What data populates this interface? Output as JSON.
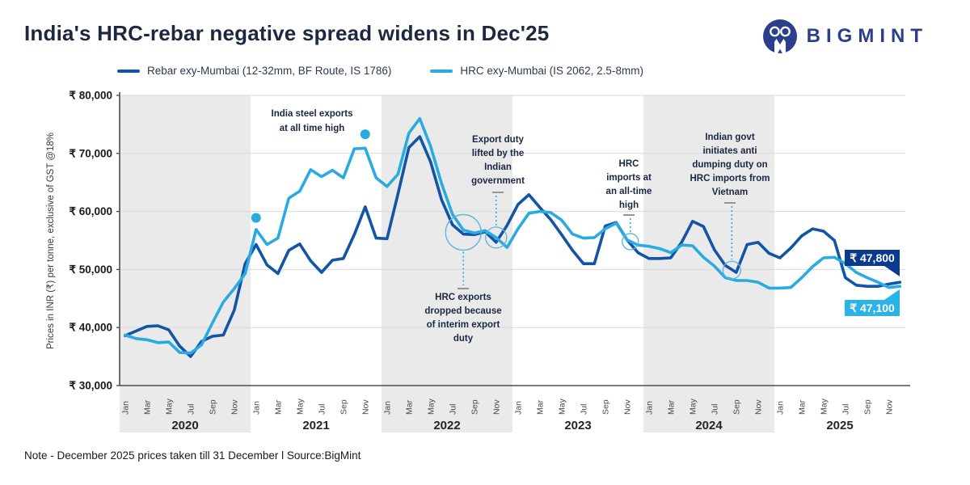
{
  "header": {
    "title": "India's HRC-rebar negative spread widens in Dec'25",
    "brand": "BIGMINT",
    "brand_color": "#2b3f8c"
  },
  "legend": [
    {
      "label": "Rebar exy-Mumbai (12-32mm, BF Route, IS 1786)",
      "color": "#1254a5"
    },
    {
      "label": "HRC exy-Mumbai (IS 2062, 2.5-8mm)",
      "color": "#29abe2"
    }
  ],
  "note": "Note - December 2025 prices taken till  31 December  l  Source:BigMint",
  "chart_data": {
    "type": "line",
    "title": "India's HRC-rebar negative spread widens in Dec'25",
    "ylabel": "Prices in INR (₹) per tonne, exclusive of GST @18%",
    "ylim": [
      30000,
      80000
    ],
    "y_tick_step": 10000,
    "y_tick_prefix": "₹ ",
    "grid": "horizontal",
    "band_years_shaded": [
      2020,
      2022,
      2024
    ],
    "band_color": "#eaeaea",
    "grid_color": "#d9d9d9",
    "axis_color": "#4d4d4d",
    "years": [
      2020,
      2021,
      2022,
      2023,
      2024,
      2025
    ],
    "month_tick_labels": [
      "Jan",
      "Mar",
      "May",
      "Jul",
      "Sep",
      "Nov"
    ],
    "series": [
      {
        "name": "Rebar exy-Mumbai (12-32mm, BF Route, IS 1786)",
        "color": "#1254a5",
        "values": [
          38600,
          39400,
          40200,
          40300,
          39600,
          36800,
          35000,
          37600,
          38500,
          38700,
          43000,
          51000,
          54300,
          50800,
          49300,
          53300,
          54400,
          51500,
          49500,
          51600,
          51900,
          56000,
          60800,
          55400,
          55300,
          63000,
          71000,
          72900,
          68500,
          62000,
          57700,
          56100,
          56000,
          56500,
          54700,
          57600,
          61200,
          62900,
          60700,
          58600,
          56000,
          53300,
          51000,
          51000,
          57500,
          58100,
          55100,
          52900,
          51900,
          51900,
          52000,
          54700,
          58300,
          57400,
          53400,
          50700,
          49500,
          54300,
          54700,
          52800,
          52000,
          53700,
          55800,
          57000,
          56600,
          55000,
          48600,
          47300,
          47100,
          47100,
          47500,
          47800
        ]
      },
      {
        "name": "HRC exy-Mumbai (IS 2062, 2.5-8mm)",
        "color": "#29abe2",
        "values": [
          38700,
          38100,
          37900,
          37400,
          37500,
          35700,
          35600,
          37000,
          40800,
          44400,
          46700,
          49300,
          56900,
          54300,
          55400,
          62300,
          63500,
          67200,
          66000,
          67100,
          65800,
          70800,
          70900,
          65800,
          64300,
          66400,
          73500,
          76000,
          71200,
          64800,
          59500,
          56800,
          56300,
          56700,
          55500,
          53800,
          57000,
          59700,
          60000,
          59800,
          58500,
          56100,
          55400,
          55500,
          57000,
          58000,
          55100,
          54200,
          54000,
          53600,
          52900,
          54200,
          54100,
          52100,
          50600,
          48600,
          48100,
          48100,
          47800,
          46800,
          46800,
          46900,
          48600,
          50500,
          52000,
          52100,
          51000,
          49500,
          48600,
          47800,
          46900,
          47100
        ]
      }
    ],
    "end_labels": [
      {
        "text": "₹ 47,800",
        "series": "Rebar",
        "color": "#0a3a8f"
      },
      {
        "text": "₹ 47,100",
        "series": "HRC",
        "color": "#29b3e8"
      }
    ],
    "annotations": [
      {
        "id": "steel-exports-high",
        "lines": [
          "India steel exports",
          "at all time high"
        ],
        "dots": [
          {
            "month_index": 12,
            "value": 58900
          },
          {
            "month_index": 22,
            "value": 73300
          }
        ]
      },
      {
        "id": "hrc-exports-dropped",
        "lines": [
          "HRC exports",
          "dropped because",
          "of interim export",
          "duty"
        ],
        "circle": {
          "month_index": 31,
          "value": 56400,
          "r": 22
        }
      },
      {
        "id": "export-duty-lifted",
        "lines": [
          "Export duty",
          "lifted by the",
          "Indian",
          "government"
        ],
        "circle": {
          "month_index": 34,
          "value": 55500,
          "r": 13
        }
      },
      {
        "id": "hrc-imports-high",
        "lines": [
          "HRC",
          "imports at",
          "an all-time",
          "high"
        ],
        "circle": {
          "month_index": 46.3,
          "value": 54800,
          "r": 10
        }
      },
      {
        "id": "anti-dumping-duty",
        "lines": [
          "Indian govt",
          "initiates anti",
          "dumping duty on",
          "HRC imports from",
          "Vietnam"
        ],
        "circle": {
          "month_index": 55.6,
          "value": 49900,
          "r": 11
        }
      }
    ]
  }
}
